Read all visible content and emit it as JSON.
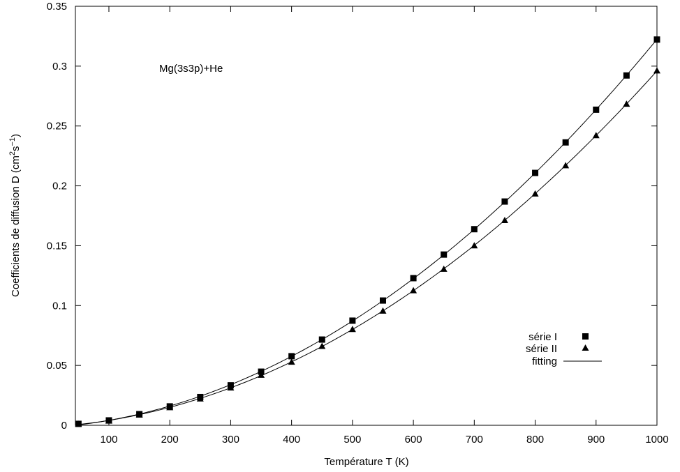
{
  "chart_data": {
    "type": "scatter",
    "xlabel": "Température T (K)",
    "ylabel_parts": [
      "Coefficients de diffusion D (cm",
      "2",
      "s",
      "−1",
      ")"
    ],
    "annotation": "Mg(3s3p)+He",
    "xlim": [
      45,
      1000
    ],
    "ylim": [
      0,
      0.35
    ],
    "xticks": [
      100,
      200,
      300,
      400,
      500,
      600,
      700,
      800,
      900,
      1000
    ],
    "yticks": [
      0,
      0.05,
      0.1,
      0.15,
      0.2,
      0.25,
      0.3,
      0.35
    ],
    "xtick_labels": [
      "100",
      "200",
      "300",
      "400",
      "500",
      "600",
      "700",
      "800",
      "900",
      "1000"
    ],
    "ytick_labels": [
      "0",
      "0.05",
      "0.1",
      "0.15",
      "0.2",
      "0.25",
      "0.3",
      "0.35"
    ],
    "grid": false,
    "legend_position": "bottom-right",
    "series": [
      {
        "name": "série I",
        "marker": "square",
        "x": [
          50,
          100,
          150,
          200,
          250,
          300,
          350,
          400,
          450,
          500,
          550,
          600,
          650,
          700,
          750,
          800,
          850,
          900,
          950,
          1000
        ],
        "y": [
          0.0012,
          0.0041,
          0.0093,
          0.0158,
          0.0236,
          0.0334,
          0.0448,
          0.0577,
          0.0716,
          0.0874,
          0.1042,
          0.1229,
          0.1426,
          0.1638,
          0.1869,
          0.2108,
          0.2363,
          0.2636,
          0.2922,
          0.3222
        ]
      },
      {
        "name": "série II",
        "marker": "triangle",
        "x": [
          50,
          100,
          150,
          200,
          250,
          300,
          350,
          400,
          450,
          500,
          550,
          600,
          650,
          700,
          750,
          800,
          850,
          900,
          950,
          1000
        ],
        "y": [
          0.0011,
          0.0037,
          0.0087,
          0.0149,
          0.0222,
          0.0314,
          0.042,
          0.0529,
          0.0661,
          0.0802,
          0.0956,
          0.1126,
          0.1305,
          0.1501,
          0.1712,
          0.1934,
          0.217,
          0.2421,
          0.2684,
          0.2962
        ]
      },
      {
        "name": "fitting",
        "marker": "line"
      }
    ]
  }
}
